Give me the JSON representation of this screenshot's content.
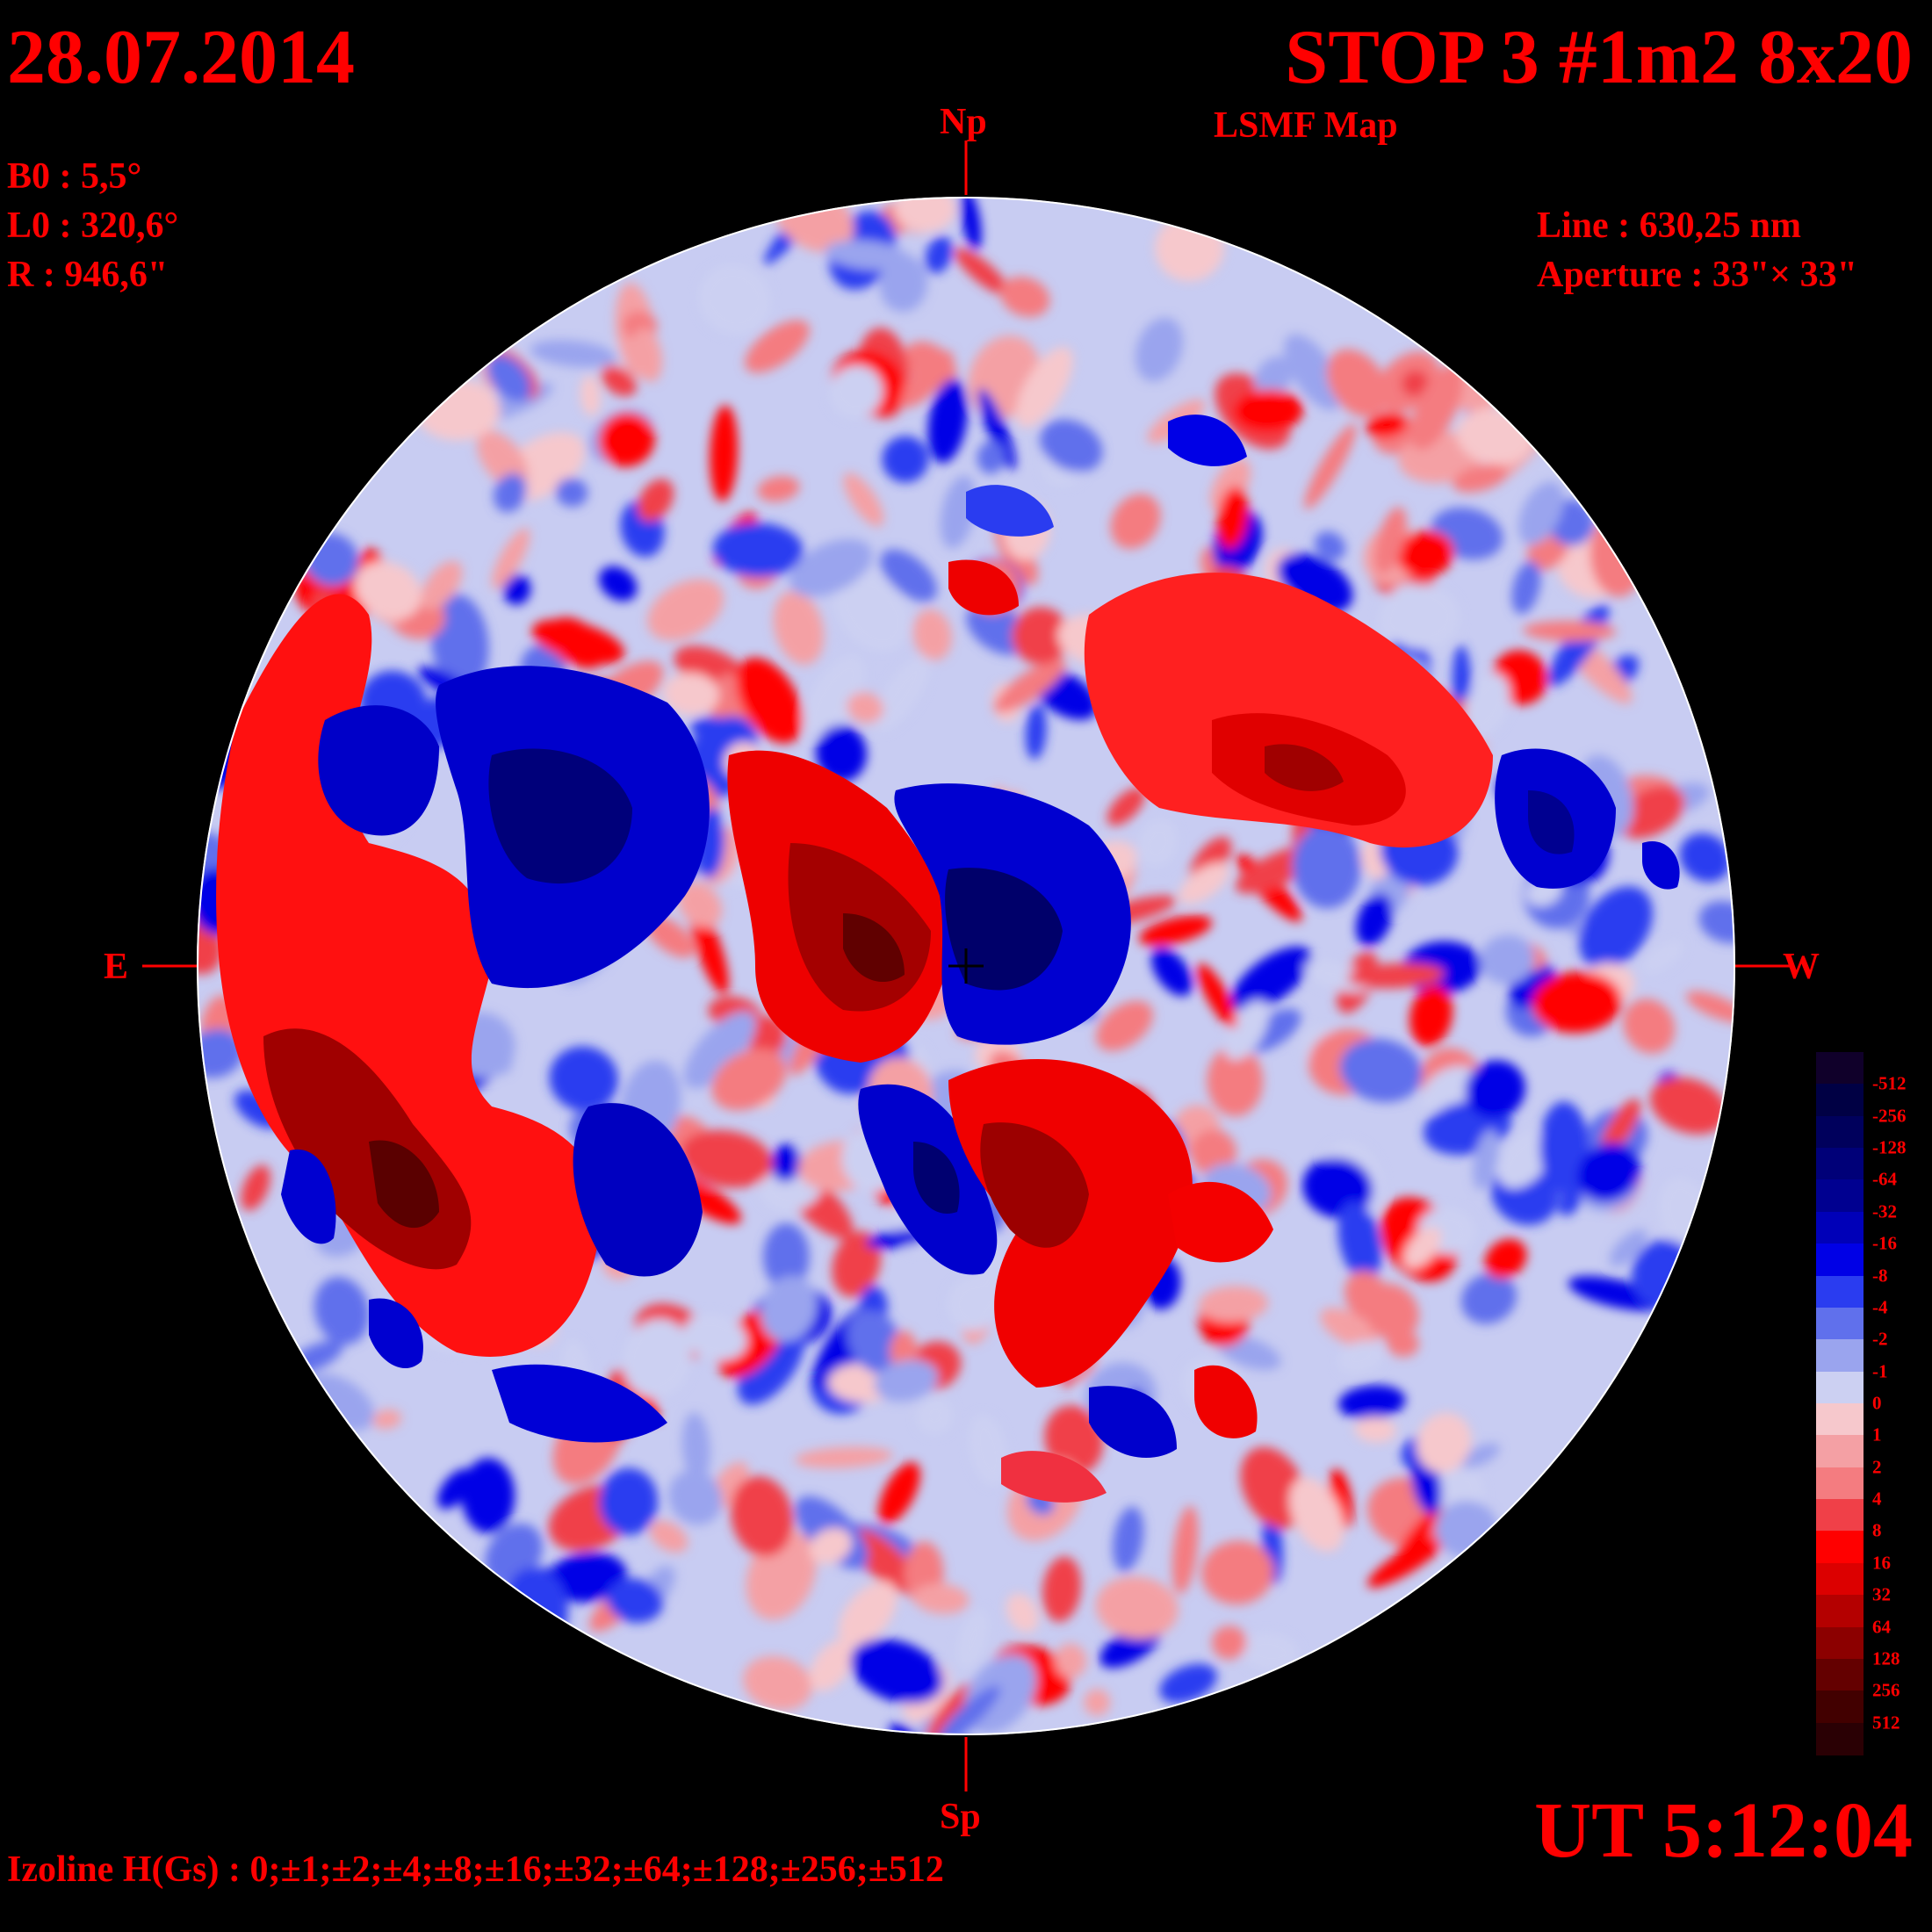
{
  "header": {
    "date": "28.07.2014",
    "title": "STOP 3 #1m2 8x20",
    "subtitle": "LSMF  Map"
  },
  "params": {
    "b0": "B0 : 5,5°",
    "l0": "L0 : 320,6°",
    "r": "R  : 946,6\"",
    "line": "Line :  630,25 nm",
    "aperture": "Aperture : 33\"× 33\""
  },
  "orientation": {
    "north": "Np",
    "south": "Sp",
    "east": "E",
    "west": "W"
  },
  "footer": {
    "time": "UT 5:12:04",
    "izoline": "Izoline H(Gs) : 0;±1;±2;±4;±8;±16;±32;±64;±128;±256;±512"
  },
  "scale": {
    "labels": [
      "-512",
      "-256",
      "-128",
      "-64",
      "-32",
      "-16",
      "-8",
      "-4",
      "-2",
      "-1",
      "0",
      "1",
      "2",
      "4",
      "8",
      "16",
      "32",
      "64",
      "128",
      "256",
      "512"
    ],
    "colors": [
      "#10002a",
      "#000044",
      "#00005c",
      "#000078",
      "#000090",
      "#0000b8",
      "#0000e6",
      "#2a3cf0",
      "#6070ec",
      "#9aa4ee",
      "#ccd0f2",
      "#f6c8cc",
      "#f4a0a4",
      "#f47c80",
      "#f04048",
      "#ff0000",
      "#dc0000",
      "#b40000",
      "#8c0000",
      "#640000",
      "#420000",
      "#2a0004"
    ]
  },
  "colors": {
    "accent": "#ff0000",
    "background": "#000000"
  }
}
